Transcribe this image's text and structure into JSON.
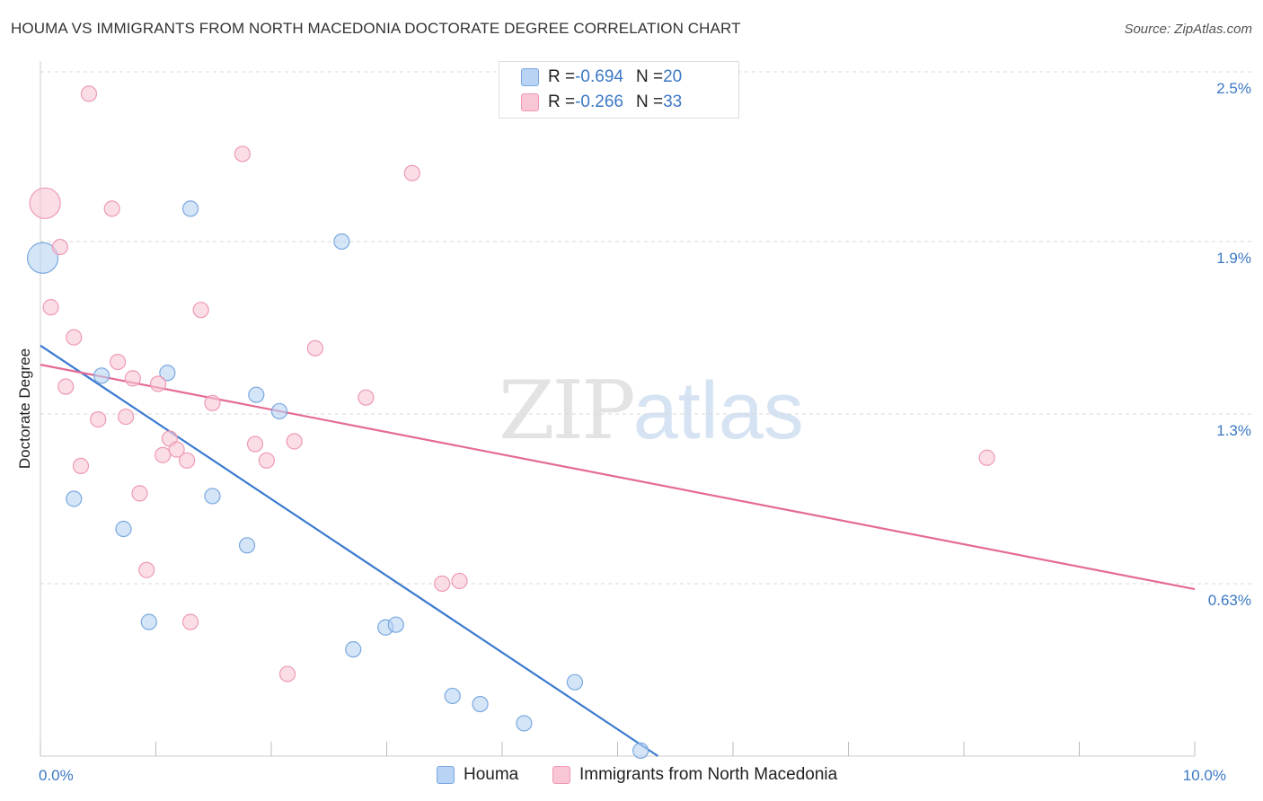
{
  "title": "HOUMA VS IMMIGRANTS FROM NORTH MACEDONIA DOCTORATE DEGREE CORRELATION CHART",
  "source": "Source: ZipAtlas.com",
  "watermark": {
    "zip": "ZIP",
    "atlas": "atlas"
  },
  "legend": {
    "rows": [
      {
        "r_label": "R = ",
        "r_value": "-0.694",
        "n_label": "N = ",
        "n_value": "20"
      },
      {
        "r_label": "R = ",
        "r_value": "-0.266",
        "n_label": "N = ",
        "n_value": "33"
      }
    ]
  },
  "bottom_legend": {
    "series1": "Houma",
    "series2": "Immigrants from North Macedonia"
  },
  "colors": {
    "houma_fill": "#b8d3f3",
    "houma_stroke": "#7aa8df",
    "houma_line": "#3b7ad0",
    "mk_fill": "#f9c6d5",
    "mk_stroke": "#ee9ab3",
    "mk_line": "#e56b93",
    "axis_label": "#3b78c4",
    "grid": "#d9d9d9"
  },
  "chart_data": {
    "type": "scatter",
    "xlim": [
      0,
      10
    ],
    "ylim": [
      0,
      2.5
    ],
    "xlabel": "",
    "ylabel": "Doctorate Degree",
    "x_tick_labels": [
      {
        "value": 0,
        "label": "0.0%"
      },
      {
        "value": 10,
        "label": "10.0%"
      }
    ],
    "y_tick_labels": [
      {
        "value": 0.63,
        "label": "0.63%"
      },
      {
        "value": 1.25,
        "label": "1.3%"
      },
      {
        "value": 1.88,
        "label": "1.9%"
      },
      {
        "value": 2.5,
        "label": "2.5%"
      }
    ],
    "grid": true,
    "series": [
      {
        "name": "Houma",
        "points": [
          {
            "x": 0.02,
            "y": 1.82,
            "big": true
          },
          {
            "x": 0.29,
            "y": 0.94
          },
          {
            "x": 0.53,
            "y": 1.39
          },
          {
            "x": 0.72,
            "y": 0.83
          },
          {
            "x": 0.94,
            "y": 0.49
          },
          {
            "x": 1.1,
            "y": 1.4
          },
          {
            "x": 1.3,
            "y": 2.0
          },
          {
            "x": 1.49,
            "y": 0.95
          },
          {
            "x": 1.79,
            "y": 0.77
          },
          {
            "x": 1.87,
            "y": 1.32
          },
          {
            "x": 2.07,
            "y": 1.26
          },
          {
            "x": 2.61,
            "y": 1.88
          },
          {
            "x": 2.71,
            "y": 0.39
          },
          {
            "x": 2.99,
            "y": 0.47
          },
          {
            "x": 3.08,
            "y": 0.48
          },
          {
            "x": 3.57,
            "y": 0.22
          },
          {
            "x": 3.81,
            "y": 0.19
          },
          {
            "x": 4.19,
            "y": 0.12
          },
          {
            "x": 4.63,
            "y": 0.27
          },
          {
            "x": 5.2,
            "y": 0.02
          }
        ],
        "trend": {
          "x0": 0.0,
          "y0": 1.5,
          "x1": 5.35,
          "y1": 0.0
        }
      },
      {
        "name": "Immigrants from North Macedonia",
        "points": [
          {
            "x": 0.04,
            "y": 2.02,
            "big": true
          },
          {
            "x": 0.09,
            "y": 1.64
          },
          {
            "x": 0.17,
            "y": 1.86
          },
          {
            "x": 0.22,
            "y": 1.35
          },
          {
            "x": 0.29,
            "y": 1.53
          },
          {
            "x": 0.35,
            "y": 1.06
          },
          {
            "x": 0.42,
            "y": 2.42
          },
          {
            "x": 0.5,
            "y": 1.23
          },
          {
            "x": 0.62,
            "y": 2.0
          },
          {
            "x": 0.67,
            "y": 1.44
          },
          {
            "x": 0.74,
            "y": 1.24
          },
          {
            "x": 0.8,
            "y": 1.38
          },
          {
            "x": 0.86,
            "y": 0.96
          },
          {
            "x": 0.92,
            "y": 0.68
          },
          {
            "x": 1.02,
            "y": 1.36
          },
          {
            "x": 1.06,
            "y": 1.1
          },
          {
            "x": 1.12,
            "y": 1.16
          },
          {
            "x": 1.18,
            "y": 1.12
          },
          {
            "x": 1.27,
            "y": 1.08
          },
          {
            "x": 1.3,
            "y": 0.49
          },
          {
            "x": 1.39,
            "y": 1.63
          },
          {
            "x": 1.49,
            "y": 1.29
          },
          {
            "x": 1.75,
            "y": 2.2
          },
          {
            "x": 1.86,
            "y": 1.14
          },
          {
            "x": 1.96,
            "y": 1.08
          },
          {
            "x": 2.14,
            "y": 0.3
          },
          {
            "x": 2.2,
            "y": 1.15
          },
          {
            "x": 2.38,
            "y": 1.49
          },
          {
            "x": 2.82,
            "y": 1.31
          },
          {
            "x": 3.22,
            "y": 2.13
          },
          {
            "x": 3.48,
            "y": 0.63
          },
          {
            "x": 3.63,
            "y": 0.64
          },
          {
            "x": 8.2,
            "y": 1.09
          }
        ],
        "trend": {
          "x0": 0.0,
          "y0": 1.43,
          "x1": 10.0,
          "y1": 0.61
        }
      }
    ]
  }
}
